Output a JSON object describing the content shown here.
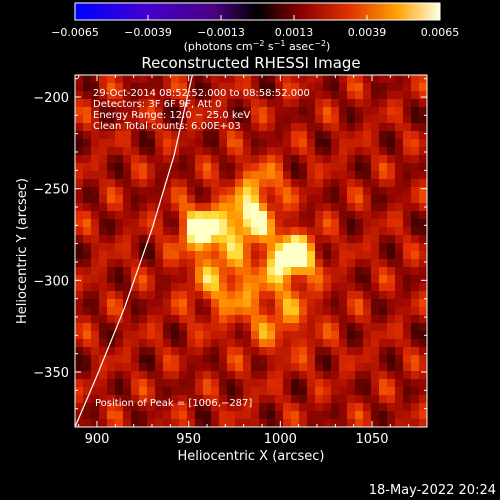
{
  "chart_data": {
    "type": "heatmap",
    "title": "Reconstructed RHESSI Image",
    "xlabel": "Heliocentric X (arcsec)",
    "ylabel": "Heliocentric Y (arcsec)",
    "xlim": [
      888,
      1080
    ],
    "ylim": [
      -380,
      -188
    ],
    "x_ticks": [
      900,
      950,
      1000,
      1050
    ],
    "y_ticks": [
      -200,
      -250,
      -300,
      -350
    ],
    "x_tick_labels": [
      "900",
      "950",
      "1000",
      "1050"
    ],
    "y_tick_labels": [
      "−200",
      "−250",
      "−300",
      "−350"
    ],
    "colorbar": {
      "ticks": [
        -0.0065,
        -0.0039,
        -0.0013,
        0.0013,
        0.0039,
        0.0065
      ],
      "tick_labels": [
        "−0.0065",
        "−0.0039",
        "−0.0013",
        "0.0013",
        "0.0039",
        "0.0065"
      ],
      "range": [
        -0.0065,
        0.0065
      ],
      "units_prefix": "(photons cm",
      "units_exp1": "−2",
      "units_mid": " s",
      "units_exp2": "−1",
      "units_mid2": " asec",
      "units_exp3": "−2",
      "units_suffix": ")"
    },
    "info_lines": [
      "29-Oct-2014 08:52:52.000 to 08:58:52.000",
      "Detectors: 3F 6F 9F, Att 0",
      "Energy Range: 12.0 − 25.0 keV",
      "Clean     Total counts: 6.00E+03"
    ],
    "peak_label": "Position of Peak = [1006,−287]",
    "peak": {
      "x": 1006,
      "y": -287
    },
    "sources": [
      {
        "x": 1006,
        "y": -287,
        "amp": 1.0,
        "sigma": 9
      },
      {
        "x": 958,
        "y": -272,
        "amp": 0.85,
        "sigma": 9
      },
      {
        "x": 982,
        "y": -268,
        "amp": 0.7,
        "sigma": 8
      },
      {
        "x": 988,
        "y": -250,
        "amp": 0.45,
        "sigma": 10
      },
      {
        "x": 970,
        "y": -300,
        "amp": 0.45,
        "sigma": 14
      },
      {
        "x": 1000,
        "y": -320,
        "amp": 0.35,
        "sigma": 14
      }
    ],
    "limb_curve": [
      [
        888,
        -380
      ],
      [
        900,
        -352
      ],
      [
        915,
        -315
      ],
      [
        930,
        -272
      ],
      [
        942,
        -232
      ],
      [
        952,
        -188
      ]
    ],
    "colors": {
      "limb": "#ffffff",
      "background": "#000000",
      "frame": "#ffffff"
    }
  },
  "footer": {
    "date": "18-May-2022 20:24"
  }
}
